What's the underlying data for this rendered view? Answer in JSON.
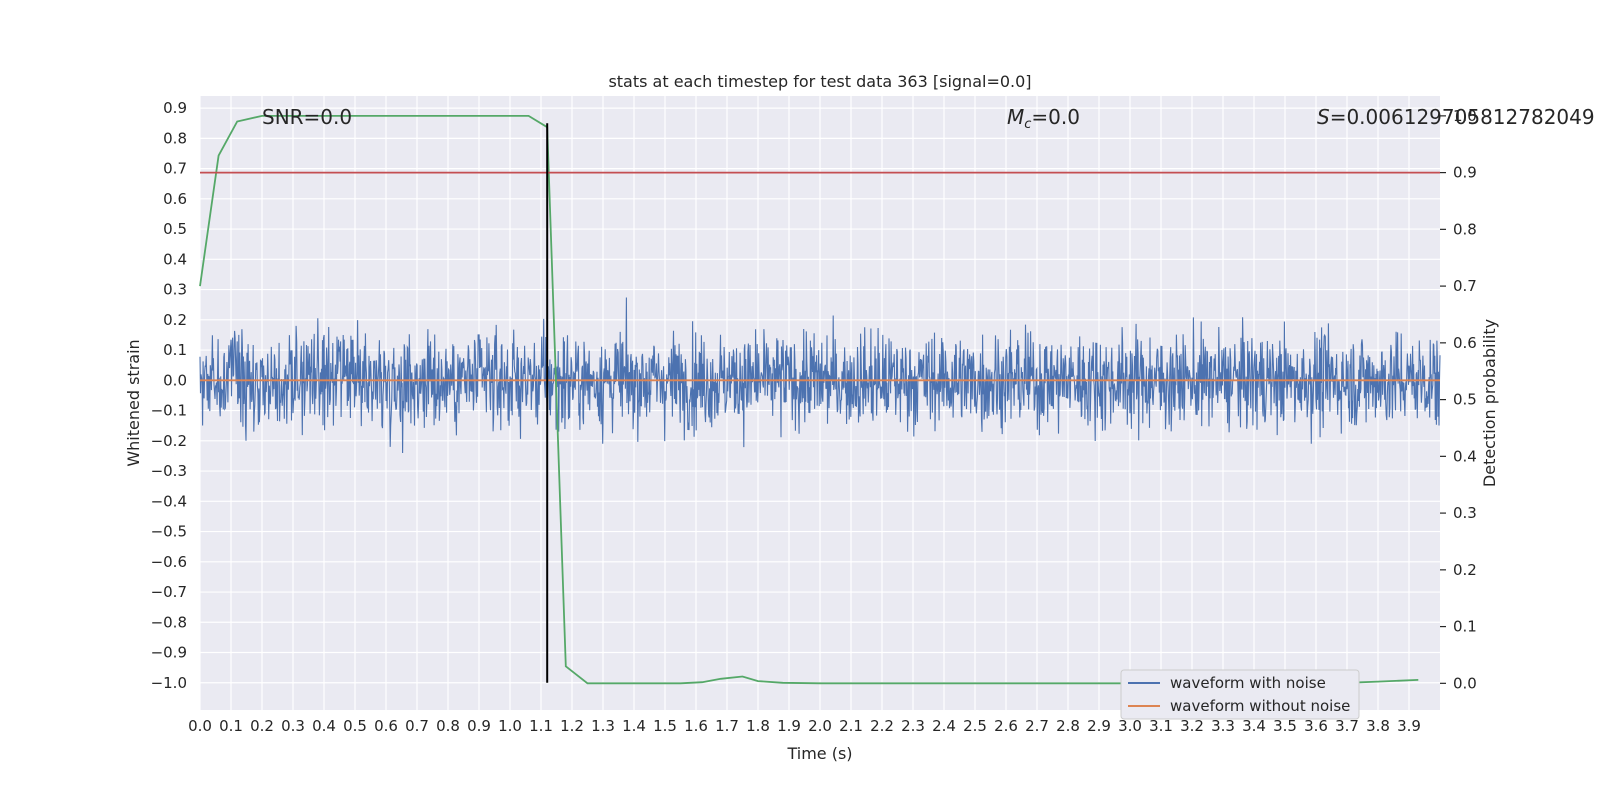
{
  "chart_data": {
    "type": "line",
    "title": "stats at each timestep for test data 363 [signal=0.0]",
    "xlabel": "Time (s)",
    "ylabel": "Whitened strain",
    "y2label": "Detection probability",
    "xlim": [
      0.0,
      4.0
    ],
    "ylim": [
      -1.09,
      0.94
    ],
    "y2lim": [
      -0.047,
      1.035
    ],
    "x_ticks": [
      "0.0",
      "0.1",
      "0.2",
      "0.3",
      "0.4",
      "0.5",
      "0.6",
      "0.7",
      "0.8",
      "0.9",
      "1.0",
      "1.1",
      "1.2",
      "1.3",
      "1.4",
      "1.5",
      "1.6",
      "1.7",
      "1.8",
      "1.9",
      "2.0",
      "2.1",
      "2.2",
      "2.3",
      "2.4",
      "2.5",
      "2.6",
      "2.7",
      "2.8",
      "2.9",
      "3.0",
      "3.1",
      "3.2",
      "3.3",
      "3.4",
      "3.5",
      "3.6",
      "3.7",
      "3.8",
      "3.9"
    ],
    "y_ticks": [
      "0.9",
      "0.8",
      "0.7",
      "0.6",
      "0.5",
      "0.4",
      "0.3",
      "0.2",
      "0.1",
      "0.0",
      "−0.1",
      "−0.2",
      "−0.3",
      "−0.4",
      "−0.5",
      "−0.6",
      "−0.7",
      "−0.8",
      "−0.9",
      "−1.0"
    ],
    "y2_ticks": [
      "1.0",
      "0.9",
      "0.8",
      "0.7",
      "0.6",
      "0.5",
      "0.4",
      "0.3",
      "0.2",
      "0.1",
      "0.0"
    ],
    "grid": true,
    "legend_placement": "bottom-right",
    "annotations": {
      "snr": "SNR=0.0",
      "mc_prefix": "M",
      "mc_sub": "c",
      "mc_value": "=0.0",
      "s_prefix": "S",
      "s_value": "=0.006129705812782049"
    },
    "series": [
      {
        "name": "waveform with noise",
        "color": "#4c72b0",
        "axis": "left",
        "kind": "noise",
        "amplitude_range": [
          -0.96,
          0.85
        ]
      },
      {
        "name": "waveform without noise",
        "color": "#dd8452",
        "axis": "left",
        "x": [
          0.0,
          4.0
        ],
        "y": [
          0.0,
          0.0
        ]
      },
      {
        "color": "#55a868",
        "axis": "right",
        "x": [
          0.0,
          0.06,
          0.12,
          0.2,
          0.3,
          0.5,
          0.8,
          1.06,
          1.12,
          1.18,
          1.25,
          1.4,
          1.55,
          1.62,
          1.68,
          1.75,
          1.8,
          1.88,
          2.0,
          2.5,
          3.0,
          3.5,
          3.7,
          3.8,
          3.93
        ],
        "y": [
          0.7,
          0.93,
          0.99,
          1.0,
          1.0,
          1.0,
          1.0,
          1.0,
          0.98,
          0.03,
          0.0,
          0.0,
          0.0,
          0.002,
          0.008,
          0.012,
          0.004,
          0.001,
          0.0,
          0.0,
          0.0,
          0.0,
          0.001,
          0.003,
          0.006
        ]
      },
      {
        "color": "#c44e52",
        "axis": "right",
        "x": [
          0.0,
          4.0
        ],
        "y": [
          0.9,
          0.9
        ]
      },
      {
        "color": "#000000",
        "axis": "left",
        "x": [
          1.12,
          1.12
        ],
        "y": [
          -1.0,
          0.85
        ]
      }
    ]
  }
}
